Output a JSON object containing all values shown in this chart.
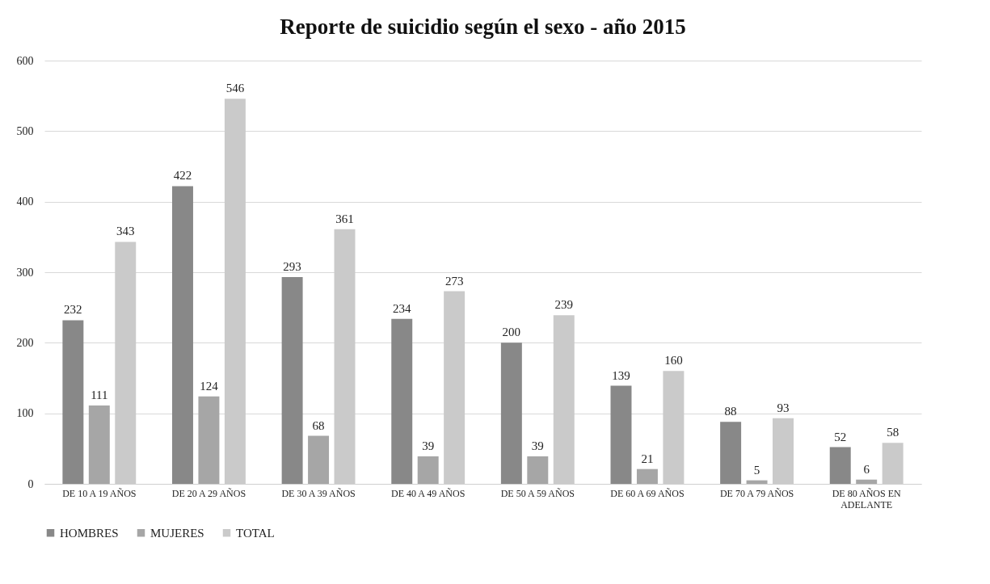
{
  "chart_data": {
    "type": "bar",
    "title": "Reporte de suicidio según el sexo - año 2015",
    "categories": [
      "DE 10 A 19 AÑOS",
      "DE 20 A 29 AÑOS",
      "DE 30 A 39 AÑOS",
      "DE 40  A 49 AÑOS",
      "DE 50 A 59 AÑOS",
      "DE 60 A 69 AÑOS",
      "DE 70 A 79 AÑOS",
      "DE 80 AÑOS EN ADELANTE"
    ],
    "series": [
      {
        "name": "HOMBRES",
        "color": "#888888",
        "values": [
          232,
          422,
          293,
          234,
          200,
          139,
          88,
          52
        ]
      },
      {
        "name": "MUJERES",
        "color": "#a6a6a6",
        "values": [
          111,
          124,
          68,
          39,
          39,
          21,
          5,
          6
        ]
      },
      {
        "name": "TOTAL",
        "color": "#cacaca",
        "values": [
          343,
          546,
          361,
          273,
          239,
          160,
          93,
          58
        ]
      }
    ],
    "ylim": [
      0,
      600
    ],
    "yticks": [
      0,
      100,
      200,
      300,
      400,
      500,
      600
    ],
    "grid": "y",
    "legend": "bottom",
    "data_labels": true
  }
}
